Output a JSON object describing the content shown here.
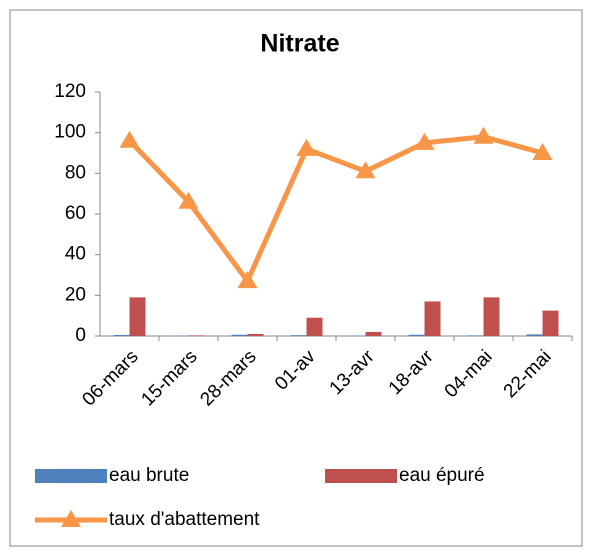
{
  "chart_data": {
    "type": "bar",
    "title": "Nitrate",
    "categories": [
      "06-mars",
      "15-mars",
      "28-mars",
      "01-av",
      "13-avr",
      "18-avr",
      "04-mai",
      "22-mai"
    ],
    "series": [
      {
        "name": "eau brute",
        "color": "#4f81bd",
        "values": [
          0.5,
          0.2,
          0.6,
          0.4,
          0.2,
          0.6,
          0.3,
          0.8
        ]
      },
      {
        "name": "eau épuré",
        "color": "#c0504d",
        "values": [
          19,
          0.3,
          1,
          9,
          2,
          17,
          19,
          12.5
        ]
      },
      {
        "name": "taux d'abattement",
        "color": "#f79646",
        "type": "line",
        "values": [
          96,
          66,
          27,
          92,
          81,
          95,
          98,
          90
        ]
      }
    ],
    "ylim": [
      0,
      120
    ],
    "yticks": [
      0,
      20,
      40,
      60,
      80,
      100,
      120
    ],
    "grid": false,
    "legend": "bottom"
  }
}
